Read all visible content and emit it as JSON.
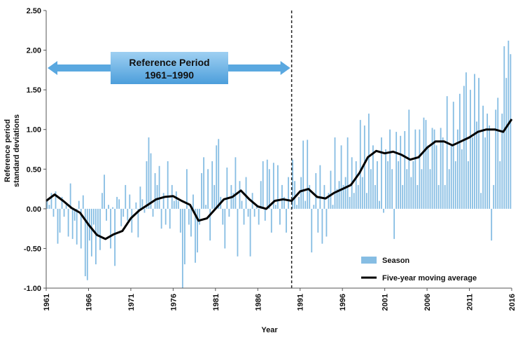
{
  "chart_data": {
    "type": "bar_line",
    "ylabel": [
      "Reference period",
      "standard deviations"
    ],
    "xlabel": "Year",
    "annotation": {
      "title": "Reference Period",
      "subtitle": "1961–1990"
    },
    "divider_x": 1990,
    "xlim": [
      1961,
      2016
    ],
    "xticks": [
      1961,
      1966,
      1971,
      1976,
      1981,
      1986,
      1991,
      1996,
      2001,
      2006,
      2011,
      2016
    ],
    "ylim": [
      -1,
      2.5
    ],
    "yticks": [
      {
        "value": -1,
        "label": "-1.00"
      },
      {
        "value": -0.5,
        "label": "-0.50"
      },
      {
        "value": 0,
        "label": "0.00"
      },
      {
        "value": 0.5,
        "label": "0.50"
      },
      {
        "value": 1,
        "label": "1.00"
      },
      {
        "value": 1.5,
        "label": "1.50"
      },
      {
        "value": 2,
        "label": "2.00"
      },
      {
        "value": 2.5,
        "label": "2.50"
      }
    ],
    "series": [
      {
        "name": "Season",
        "color": "#86bde3",
        "x": [
          1961,
          1961.25,
          1961.5,
          1961.75,
          1962,
          1962.25,
          1962.5,
          1962.75,
          1963,
          1963.25,
          1963.5,
          1963.75,
          1964,
          1964.25,
          1964.5,
          1964.75,
          1965,
          1965.25,
          1965.5,
          1965.75,
          1966,
          1966.25,
          1966.5,
          1966.75,
          1967,
          1967.25,
          1967.5,
          1967.75,
          1968,
          1968.25,
          1968.5,
          1968.75,
          1969,
          1969.25,
          1969.5,
          1969.75,
          1970,
          1970.25,
          1970.5,
          1970.75,
          1971,
          1971.25,
          1971.5,
          1971.75,
          1972,
          1972.25,
          1972.5,
          1972.75,
          1973,
          1973.25,
          1973.5,
          1973.75,
          1974,
          1974.25,
          1974.5,
          1974.75,
          1975,
          1975.25,
          1975.5,
          1975.75,
          1976,
          1976.25,
          1976.5,
          1976.75,
          1977,
          1977.25,
          1977.5,
          1977.75,
          1978,
          1978.25,
          1978.5,
          1978.75,
          1979,
          1979.25,
          1979.5,
          1979.75,
          1980,
          1980.25,
          1980.5,
          1980.75,
          1981,
          1981.25,
          1981.5,
          1981.75,
          1982,
          1982.25,
          1982.5,
          1982.75,
          1983,
          1983.25,
          1983.5,
          1983.75,
          1984,
          1984.25,
          1984.5,
          1984.75,
          1985,
          1985.25,
          1985.5,
          1985.75,
          1986,
          1986.25,
          1986.5,
          1986.75,
          1987,
          1987.25,
          1987.5,
          1987.75,
          1988,
          1988.25,
          1988.5,
          1988.75,
          1989,
          1989.25,
          1989.5,
          1989.75,
          1990,
          1990.25,
          1990.5,
          1990.75,
          1991,
          1991.25,
          1991.5,
          1991.75,
          1992,
          1992.25,
          1992.5,
          1992.75,
          1993,
          1993.25,
          1993.5,
          1993.75,
          1994,
          1994.25,
          1994.5,
          1994.75,
          1995,
          1995.25,
          1995.5,
          1995.75,
          1996,
          1996.25,
          1996.5,
          1996.75,
          1997,
          1997.25,
          1997.5,
          1997.75,
          1998,
          1998.25,
          1998.5,
          1998.75,
          1999,
          1999.25,
          1999.5,
          1999.75,
          2000,
          2000.25,
          2000.5,
          2000.75,
          2001,
          2001.25,
          2001.5,
          2001.75,
          2002,
          2002.25,
          2002.5,
          2002.75,
          2003,
          2003.25,
          2003.5,
          2003.75,
          2004,
          2004.25,
          2004.5,
          2004.75,
          2005,
          2005.25,
          2005.5,
          2005.75,
          2006,
          2006.25,
          2006.5,
          2006.75,
          2007,
          2007.25,
          2007.5,
          2007.75,
          2008,
          2008.25,
          2008.5,
          2008.75,
          2009,
          2009.25,
          2009.5,
          2009.75,
          2010,
          2010.25,
          2010.5,
          2010.75,
          2011,
          2011.25,
          2011.5,
          2011.75,
          2012,
          2012.25,
          2012.5,
          2012.75,
          2013,
          2013.25,
          2013.5,
          2013.75,
          2014,
          2014.25,
          2014.5,
          2014.75,
          2015,
          2015.25,
          2015.5,
          2015.75
        ],
        "values": [
          0.12,
          0.05,
          0.2,
          -0.1,
          0.22,
          -0.44,
          -0.3,
          0.15,
          -0.1,
          0.05,
          -0.35,
          0.32,
          -0.38,
          -0.15,
          -0.45,
          0.1,
          -0.5,
          0.17,
          -0.85,
          -0.9,
          -0.4,
          -0.6,
          -0.2,
          -0.7,
          -0.35,
          -0.52,
          0.2,
          0.43,
          -0.15,
          0.05,
          -0.5,
          0.02,
          -0.72,
          0.15,
          0.12,
          -0.22,
          -0.1,
          0.3,
          -0.15,
          0.18,
          -0.3,
          0.0,
          0.08,
          -0.36,
          0.28,
          0.12,
          -0.05,
          0.6,
          0.9,
          0.7,
          -0.1,
          0.45,
          0.3,
          0.54,
          -0.25,
          0.2,
          -0.2,
          0.6,
          -0.25,
          0.3,
          0.1,
          0.22,
          0.1,
          -0.3,
          -1.0,
          -0.7,
          0.5,
          -0.2,
          -0.35,
          0.18,
          -0.68,
          -0.55,
          -0.2,
          0.45,
          0.65,
          0.05,
          0.5,
          -0.4,
          0.6,
          0.3,
          0.8,
          0.88,
          0.15,
          -0.2,
          -0.5,
          0.52,
          -0.1,
          0.3,
          0.2,
          0.65,
          -0.6,
          0.35,
          0.1,
          -0.2,
          0.4,
          -0.1,
          -0.6,
          0.2,
          -0.1,
          0.05,
          -0.2,
          0.35,
          0.6,
          -0.15,
          0.62,
          0.5,
          -0.3,
          0.58,
          0.05,
          0.55,
          -0.2,
          0.3,
          0.15,
          -0.3,
          0.4,
          0.0,
          0.62,
          0.35,
          0.05,
          0.15,
          0.4,
          0.86,
          0.1,
          0.87,
          0.3,
          -0.55,
          0.05,
          0.45,
          -0.3,
          0.55,
          -0.44,
          0.3,
          -0.35,
          0.2,
          0.48,
          0.05,
          0.9,
          0.25,
          0.35,
          0.8,
          0.3,
          0.4,
          0.9,
          0.15,
          0.65,
          0.2,
          0.6,
          0.3,
          1.12,
          0.4,
          1.05,
          0.2,
          1.2,
          0.5,
          0.8,
          0.3,
          0.6,
          0.1,
          0.9,
          -0.05,
          0.75,
          0.6,
          1.0,
          0.5,
          -0.38,
          0.97,
          0.6,
          0.92,
          0.3,
          0.98,
          0.5,
          1.25,
          0.4,
          0.6,
          1.0,
          0.3,
          1.0,
          0.5,
          1.15,
          1.12,
          0.8,
          0.5,
          1.02,
          1.0,
          0.8,
          0.3,
          1.02,
          0.9,
          0.3,
          1.42,
          0.5,
          0.8,
          1.35,
          0.6,
          1.0,
          1.45,
          0.75,
          1.55,
          1.72,
          0.6,
          1.5,
          0.9,
          1.7,
          1.1,
          1.65,
          0.2,
          1.3,
          0.9,
          1.2,
          1.05,
          -0.4,
          0.3,
          1.25,
          1.4,
          0.6,
          1.2,
          2.05,
          1.65,
          2.12,
          1.95
        ]
      },
      {
        "name": "Five-year moving average",
        "color": "#000000",
        "x": [
          1961,
          1962,
          1963,
          1964,
          1965,
          1966,
          1967,
          1968,
          1969,
          1970,
          1971,
          1972,
          1973,
          1974,
          1975,
          1976,
          1977,
          1978,
          1979,
          1980,
          1981,
          1982,
          1983,
          1984,
          1985,
          1986,
          1987,
          1988,
          1989,
          1990,
          1991,
          1992,
          1993,
          1994,
          1995,
          1996,
          1997,
          1998,
          1999,
          2000,
          2001,
          2002,
          2003,
          2004,
          2005,
          2006,
          2007,
          2008,
          2009,
          2010,
          2011,
          2012,
          2013,
          2014,
          2015,
          2016
        ],
        "values": [
          0.1,
          0.18,
          0.1,
          0.01,
          -0.05,
          -0.2,
          -0.33,
          -0.38,
          -0.32,
          -0.28,
          -0.12,
          -0.02,
          0.05,
          0.12,
          0.15,
          0.16,
          0.1,
          0.05,
          -0.15,
          -0.12,
          0.0,
          0.12,
          0.15,
          0.23,
          0.12,
          0.03,
          0.0,
          0.1,
          0.12,
          0.1,
          0.22,
          0.25,
          0.15,
          0.13,
          0.2,
          0.25,
          0.3,
          0.45,
          0.65,
          0.73,
          0.7,
          0.72,
          0.68,
          0.62,
          0.65,
          0.77,
          0.85,
          0.85,
          0.8,
          0.85,
          0.9,
          0.97,
          1.0,
          1.0,
          0.97,
          1.13
        ]
      }
    ]
  }
}
